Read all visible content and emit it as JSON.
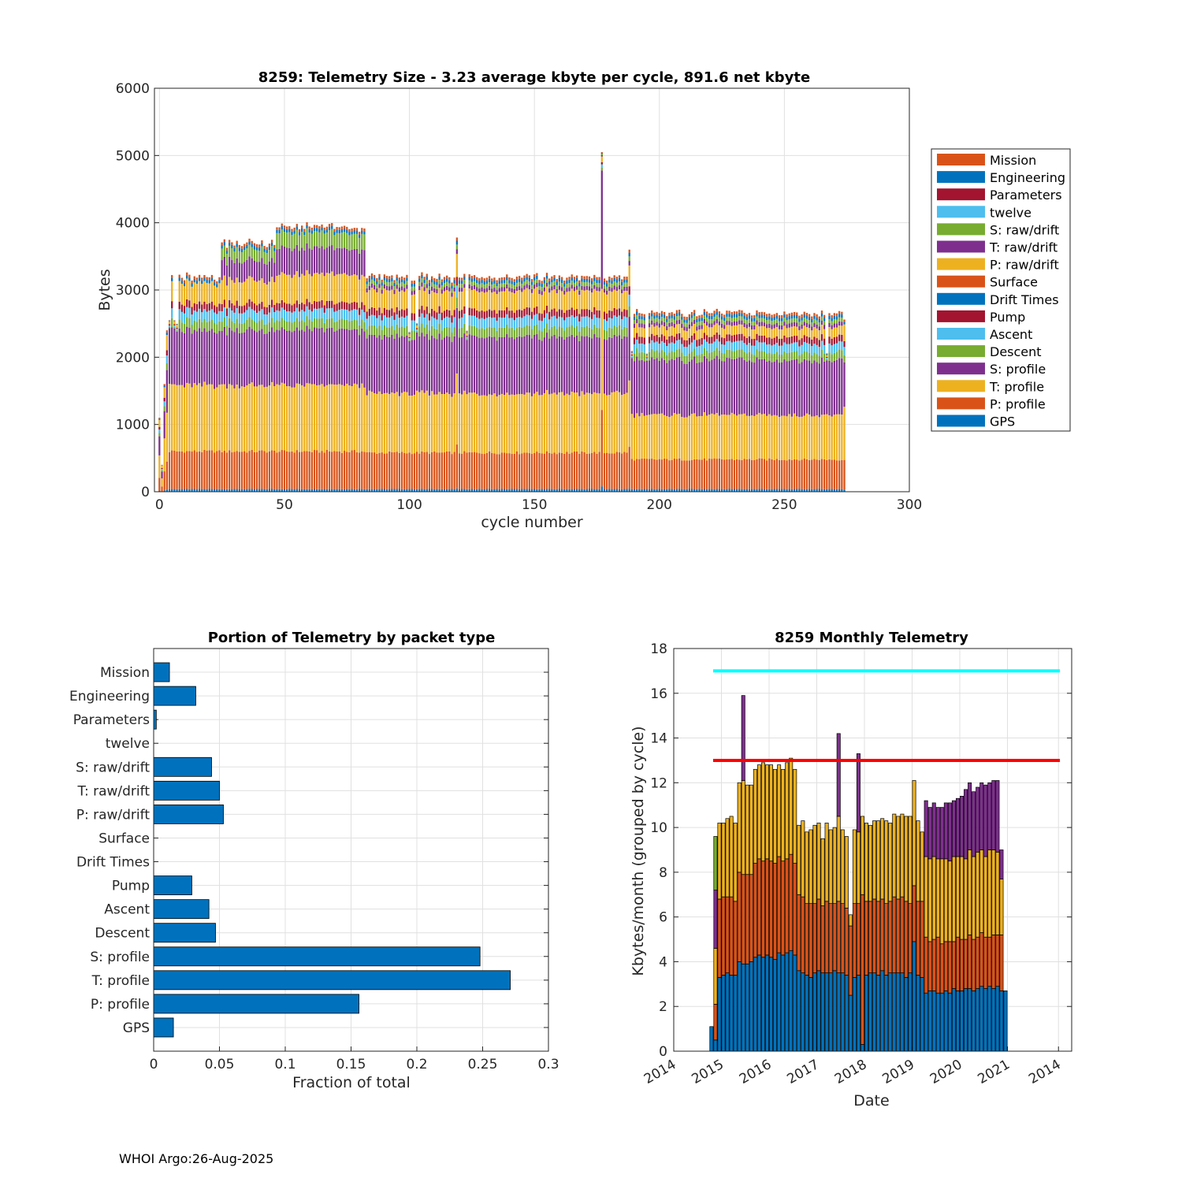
{
  "footer": "WHOI Argo:26-Aug-2025",
  "colors": {
    "blue": "#0072bd",
    "orange": "#d95319",
    "yellow": "#edb120",
    "purple": "#7e2f8e",
    "green": "#77ac30",
    "cyan": "#4dbeee",
    "red": "#a2142f",
    "limit_cyan": "#00ffff",
    "limit_red": "#ff0000"
  },
  "chart_data": [
    {
      "id": "telemetry_size",
      "type": "bar",
      "stacked": true,
      "title": "8259: Telemetry Size - 3.23 average kbyte per cycle,  891.6 net kbyte",
      "xlabel": "cycle number",
      "ylabel": "Bytes",
      "xlim": [
        -2,
        300
      ],
      "ylim": [
        0,
        6000
      ],
      "xticks": [
        0,
        50,
        100,
        150,
        200,
        250,
        300
      ],
      "yticks": [
        0,
        1000,
        2000,
        3000,
        4000,
        5000,
        6000
      ],
      "grid": true,
      "legend_position": "outside-right",
      "legend": [
        "Mission",
        "Engineering",
        "Parameters",
        "twelve",
        "S: raw/drift",
        "T: raw/drift",
        "P: raw/drift",
        "Surface",
        "Drift Times",
        "Pump",
        "Ascent",
        "Descent",
        "S: profile",
        "T: profile",
        "P: profile",
        "GPS"
      ],
      "legend_colors": [
        "orange",
        "blue",
        "red",
        "cyan",
        "green",
        "purple",
        "yellow",
        "orange",
        "blue",
        "red",
        "cyan",
        "green",
        "purple",
        "yellow",
        "orange",
        "blue"
      ],
      "stack_order_bottom_up": [
        "GPS",
        "P: profile",
        "T: profile",
        "S: profile",
        "Descent",
        "Ascent",
        "Pump",
        "P: raw/drift",
        "T: raw/drift",
        "S: raw/drift",
        "Engineering",
        "Mission"
      ],
      "segments": [
        {
          "from": 5,
          "to": 24,
          "values": [
            40,
            560,
            980,
            820,
            140,
            150,
            110,
            300,
            0,
            0,
            50,
            40
          ]
        },
        {
          "from": 25,
          "to": 46,
          "values": [
            40,
            560,
            980,
            820,
            140,
            150,
            110,
            350,
            290,
            170,
            50,
            40
          ]
        },
        {
          "from": 47,
          "to": 82,
          "values": [
            40,
            560,
            980,
            820,
            140,
            150,
            110,
            420,
            390,
            230,
            50,
            40
          ]
        },
        {
          "from": 83,
          "to": 188,
          "values": [
            40,
            540,
            880,
            840,
            140,
            150,
            110,
            280,
            60,
            60,
            50,
            40
          ]
        },
        {
          "from": 189,
          "to": 273,
          "values": [
            40,
            440,
            660,
            820,
            120,
            130,
            100,
            140,
            60,
            60,
            50,
            40
          ]
        }
      ],
      "dropouts": [
        4,
        6,
        7,
        100,
        103,
        123,
        177,
        189,
        195,
        267
      ],
      "totals": [
        {
          "cycle": 0,
          "total": 1100
        },
        {
          "cycle": 1,
          "total": 400
        },
        {
          "cycle": 2,
          "total": 1600
        },
        {
          "cycle": 3,
          "total": 2400
        },
        {
          "cycle": 119,
          "total": 3780
        },
        {
          "cycle": 177,
          "total": 5050
        },
        {
          "cycle": 188,
          "total": 3600
        },
        {
          "cycle": 274,
          "total": 2560
        }
      ]
    },
    {
      "id": "portion_by_packet",
      "type": "bar",
      "orientation": "horizontal",
      "title": "Portion of Telemetry by packet type",
      "xlabel": "Fraction of total",
      "ylabel": "",
      "xlim": [
        0,
        0.3
      ],
      "xticks": [
        "0",
        "0.05",
        "0.1",
        "0.15",
        "0.2",
        "0.25",
        "0.3"
      ],
      "grid": true,
      "categories": [
        "Mission",
        "Engineering",
        "Parameters",
        "twelve",
        "S: raw/drift",
        "T: raw/drift",
        "P: raw/drift",
        "Surface",
        "Drift Times",
        "Pump",
        "Ascent",
        "Descent",
        "S: profile",
        "T: profile",
        "P: profile",
        "GPS"
      ],
      "values": [
        0.012,
        0.032,
        0.002,
        0.0,
        0.044,
        0.05,
        0.053,
        0.0,
        0.0,
        0.029,
        0.042,
        0.047,
        0.248,
        0.271,
        0.156,
        0.015
      ]
    },
    {
      "id": "monthly_telemetry",
      "type": "bar",
      "stacked": true,
      "title": "8259 Monthly Telemetry",
      "xlabel": "Date",
      "ylabel": "Kbytes/month (grouped by cycle)",
      "ylim": [
        0,
        18
      ],
      "yticks": [
        0,
        2,
        4,
        6,
        8,
        10,
        12,
        14,
        16,
        18
      ],
      "xticks": [
        "2014",
        "2015",
        "2016",
        "2017",
        "2018",
        "2019",
        "2020",
        "2021",
        "2014"
      ],
      "grid": true,
      "hlines": [
        {
          "y": 17,
          "color": "limit_cyan"
        },
        {
          "y": 13,
          "color": "limit_red"
        }
      ],
      "months_per_year_tick": 12,
      "first_bar_month_offset": 9,
      "bar_layers": [
        "blue",
        "orange",
        "yellow",
        "purple",
        "green"
      ],
      "bars": [
        [
          1.1,
          0,
          0,
          0,
          0
        ],
        [
          0.5,
          1.6,
          2.5,
          2.6,
          2.4
        ],
        [
          3.3,
          3.5,
          3.4,
          0,
          0
        ],
        [
          3.4,
          3.5,
          3.3,
          0,
          0
        ],
        [
          3.5,
          3.4,
          3.5,
          0,
          0
        ],
        [
          3.4,
          3.5,
          3.6,
          0,
          0
        ],
        [
          3.4,
          3.3,
          3.5,
          0,
          0
        ],
        [
          4.0,
          4.0,
          4.0,
          0,
          0
        ],
        [
          3.9,
          4.0,
          4.2,
          3.8,
          0
        ],
        [
          3.9,
          4.0,
          4.0,
          0,
          0
        ],
        [
          4.0,
          3.9,
          4.0,
          0,
          0
        ],
        [
          4.2,
          4.2,
          4.2,
          0,
          0
        ],
        [
          4.3,
          4.3,
          4.2,
          0,
          0
        ],
        [
          4.2,
          4.3,
          4.4,
          0,
          0
        ],
        [
          4.3,
          4.3,
          4.2,
          0,
          0
        ],
        [
          4.2,
          4.3,
          4.3,
          0,
          0
        ],
        [
          4.1,
          4.3,
          4.2,
          0,
          0
        ],
        [
          4.4,
          4.3,
          4.1,
          0,
          0
        ],
        [
          4.3,
          4.2,
          4.1,
          0,
          0
        ],
        [
          4.4,
          4.2,
          4.3,
          0,
          0
        ],
        [
          4.5,
          4.3,
          4.3,
          0,
          0
        ],
        [
          4.3,
          4.1,
          4.2,
          0,
          0
        ],
        [
          3.6,
          3.4,
          3.1,
          0,
          0
        ],
        [
          3.5,
          3.4,
          3.4,
          0,
          0
        ],
        [
          3.4,
          3.2,
          3.2,
          0,
          0
        ],
        [
          3.3,
          3.3,
          3.3,
          0,
          0
        ],
        [
          3.5,
          3.1,
          3.5,
          0,
          0
        ],
        [
          3.6,
          3.2,
          3.4,
          0,
          0
        ],
        [
          3.5,
          3.0,
          3.0,
          0,
          0
        ],
        [
          3.5,
          3.2,
          3.5,
          0,
          0
        ],
        [
          3.5,
          3.1,
          3.3,
          0,
          0
        ],
        [
          3.6,
          3.0,
          3.4,
          0,
          0
        ],
        [
          3.5,
          3.2,
          3.8,
          3.7,
          0
        ],
        [
          3.5,
          3.1,
          3.3,
          0,
          0
        ],
        [
          3.4,
          3.0,
          3.2,
          0,
          0
        ],
        [
          2.5,
          3.1,
          0.5,
          0,
          0
        ],
        [
          3.3,
          3.3,
          3.3,
          0,
          0
        ],
        [
          3.4,
          3.2,
          3.2,
          3.5,
          0
        ],
        [
          0.3,
          6.7,
          3.5,
          0,
          0
        ],
        [
          3.4,
          3.3,
          3.5,
          0,
          0
        ],
        [
          3.5,
          3.2,
          3.4,
          0,
          0
        ],
        [
          3.5,
          3.3,
          3.5,
          0,
          0
        ],
        [
          3.4,
          3.3,
          3.6,
          0,
          0
        ],
        [
          3.6,
          3.2,
          3.6,
          0,
          0
        ],
        [
          3.4,
          3.2,
          3.7,
          0,
          0
        ],
        [
          3.5,
          3.2,
          3.5,
          0,
          0
        ],
        [
          3.5,
          3.4,
          3.7,
          0,
          0
        ],
        [
          3.5,
          3.3,
          3.7,
          0,
          0
        ],
        [
          3.5,
          3.4,
          3.7,
          0,
          0
        ],
        [
          3.3,
          3.4,
          3.8,
          0,
          0
        ],
        [
          3.5,
          3.1,
          3.9,
          0,
          0
        ],
        [
          4.9,
          2.5,
          4.7,
          0,
          0
        ],
        [
          3.4,
          3.3,
          3.6,
          0,
          0
        ],
        [
          3.3,
          3.4,
          3.1,
          0,
          0
        ],
        [
          2.6,
          2.5,
          3.6,
          2.5,
          0
        ],
        [
          2.7,
          2.2,
          3.7,
          2.3,
          0
        ],
        [
          2.7,
          2.3,
          3.7,
          2.4,
          0
        ],
        [
          2.6,
          2.5,
          3.5,
          2.3,
          0
        ],
        [
          2.6,
          2.2,
          3.8,
          2.3,
          0
        ],
        [
          2.7,
          2.2,
          3.7,
          2.5,
          0
        ],
        [
          2.6,
          2.3,
          3.6,
          2.6,
          0
        ],
        [
          2.8,
          2.1,
          3.8,
          2.5,
          0
        ],
        [
          2.7,
          2.4,
          3.6,
          2.6,
          0
        ],
        [
          2.7,
          2.3,
          3.7,
          2.7,
          0
        ],
        [
          2.8,
          2.2,
          3.6,
          3.1,
          0
        ],
        [
          2.8,
          2.4,
          3.8,
          3.0,
          0
        ],
        [
          2.7,
          2.3,
          3.7,
          2.9,
          0
        ],
        [
          2.8,
          2.3,
          3.8,
          2.9,
          0
        ],
        [
          2.9,
          2.4,
          3.7,
          3.0,
          0
        ],
        [
          2.8,
          2.3,
          3.6,
          3.2,
          0
        ],
        [
          2.9,
          2.2,
          3.9,
          3.0,
          0
        ],
        [
          2.8,
          2.4,
          3.8,
          3.1,
          0
        ],
        [
          2.9,
          2.3,
          3.7,
          3.2,
          0
        ],
        [
          2.7,
          2.5,
          2.5,
          1.3,
          0
        ],
        [
          2.7,
          0,
          0,
          0,
          0
        ]
      ]
    }
  ]
}
